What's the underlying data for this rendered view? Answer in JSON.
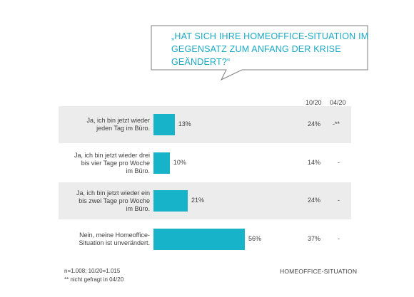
{
  "question": {
    "lines": [
      "„HAT SICH IHRE HOMEOFFICE-SITUATION IM",
      "GEGENSATZ ZUM ANFANG DER KRISE",
      "GEÄNDERT?“"
    ]
  },
  "columns": {
    "current": "10/20",
    "previous": "04/20"
  },
  "chart_data": {
    "type": "bar",
    "orientation": "horizontal",
    "categories": [
      [
        "Ja, ich bin jetzt wieder",
        "jeden Tag im Büro."
      ],
      [
        "Ja, ich bin jetzt wieder drei",
        "bis vier Tage pro Woche",
        "im Büro."
      ],
      [
        "Ja, ich bin jetzt wieder ein",
        "bis zwei Tage pro Woche",
        "im Büro."
      ],
      [
        "Nein, meine Homeoffice-",
        "Situation ist unverändert."
      ]
    ],
    "values": [
      13,
      10,
      21,
      56
    ],
    "value_labels": [
      "13%",
      "10%",
      "21%",
      "56%"
    ],
    "comparison": {
      "10/20": [
        "24%",
        "14%",
        "24%",
        "37%"
      ],
      "04/20": [
        "-**",
        "-",
        "-",
        "-"
      ]
    },
    "xlim": [
      0,
      100
    ],
    "bar_color": "#17b3c8",
    "band_color": "#ececec"
  },
  "footnotes": {
    "sample": "n=1.008;  10/20=1.015",
    "note": "** nicht gefragt in 04/20"
  },
  "source": "HOMEOFFICE-SITUATION",
  "colors": {
    "accent": "#1aa9c5",
    "text": "#404040"
  }
}
